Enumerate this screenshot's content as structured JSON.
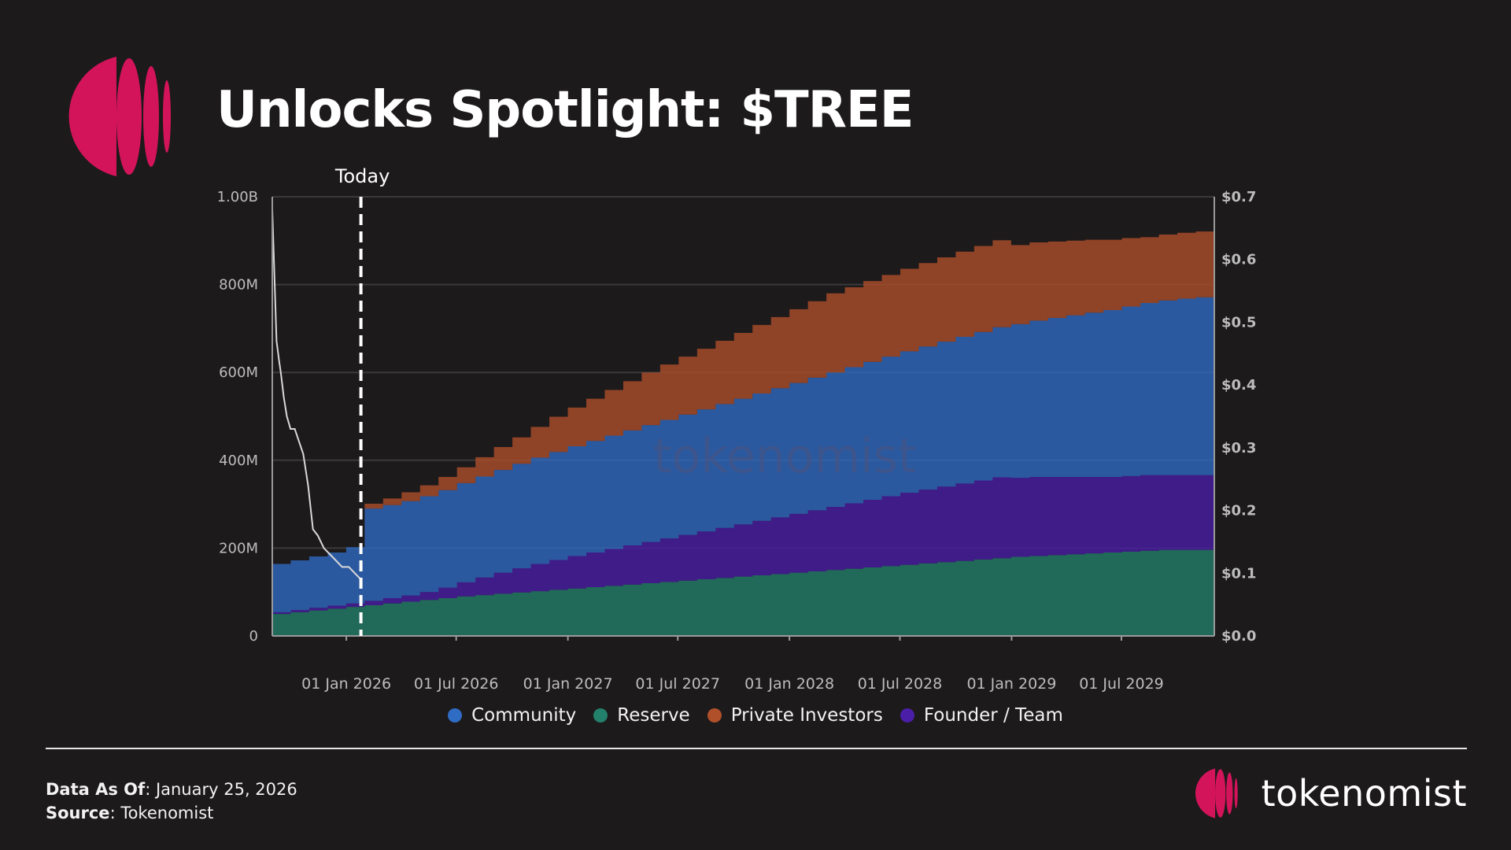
{
  "title": "Unlocks Spotlight: $TREE",
  "colors": {
    "background": "#1d1a1b",
    "brand": "#d4145a",
    "community": "#2f6cc4",
    "reserve": "#23806a",
    "private_investors": "#b0502a",
    "founder_team": "#4a1ea6",
    "price_line": "#d9d9d9"
  },
  "footer": {
    "data_as_of_label": "Data As Of",
    "data_as_of_value": ": January 25, 2026",
    "source_label": "Source",
    "source_value": ": Tokenomist"
  },
  "brand": {
    "name": "tokenomist",
    "watermark": "tokenomist"
  },
  "chart_data": {
    "type": "area",
    "stacked": true,
    "today_label": "Today",
    "today_date": "2026-01-25",
    "x_start": "2025-09-01",
    "x_end": "2029-12-01",
    "x_ticks": [
      "01 Jan 2026",
      "01 Jul 2026",
      "01 Jan 2027",
      "01 Jul 2027",
      "01 Jan 2028",
      "01 Jul 2028",
      "01 Jan 2029",
      "01 Jul 2029"
    ],
    "y_left": {
      "ticks": [
        "0",
        "200M",
        "400M",
        "600M",
        "800M",
        "1.00B"
      ],
      "min": 0,
      "max": 1000000000
    },
    "y_right": {
      "ticks": [
        "$0.0",
        "$0.1",
        "$0.2",
        "$0.3",
        "$0.4",
        "$0.5",
        "$0.6",
        "$0.7"
      ],
      "min": 0,
      "max": 0.7
    },
    "grid": true,
    "legend_position": "bottom",
    "x": [
      "2025-09",
      "2025-10",
      "2025-11",
      "2025-12",
      "2026-01",
      "2026-02",
      "2026-03",
      "2026-04",
      "2026-05",
      "2026-06",
      "2026-07",
      "2026-08",
      "2026-09",
      "2026-10",
      "2026-11",
      "2026-12",
      "2027-01",
      "2027-02",
      "2027-03",
      "2027-04",
      "2027-05",
      "2027-06",
      "2027-07",
      "2027-08",
      "2027-09",
      "2027-10",
      "2027-11",
      "2027-12",
      "2028-01",
      "2028-02",
      "2028-03",
      "2028-04",
      "2028-05",
      "2028-06",
      "2028-07",
      "2028-08",
      "2028-09",
      "2028-10",
      "2028-11",
      "2028-12",
      "2029-01",
      "2029-02",
      "2029-03",
      "2029-04",
      "2029-05",
      "2029-06",
      "2029-07",
      "2029-08",
      "2029-09",
      "2029-10",
      "2029-11"
    ],
    "series": [
      {
        "name": "Reserve",
        "color": "#23806a",
        "values": [
          50,
          54,
          58,
          62,
          66,
          70,
          74,
          78,
          82,
          86,
          90,
          93,
          96,
          99,
          102,
          105,
          108,
          111,
          114,
          117,
          120,
          123,
          126,
          129,
          132,
          135,
          138,
          141,
          144,
          147,
          150,
          153,
          156,
          159,
          162,
          165,
          168,
          171,
          174,
          177,
          180,
          182,
          184,
          186,
          188,
          190,
          192,
          194,
          196,
          196,
          196
        ]
      },
      {
        "name": "Founder / Team",
        "color": "#4a1ea6",
        "values": [
          4,
          5,
          6,
          7,
          8,
          10,
          12,
          14,
          18,
          24,
          32,
          40,
          48,
          55,
          62,
          68,
          74,
          79,
          84,
          89,
          94,
          99,
          104,
          109,
          114,
          119,
          124,
          129,
          134,
          139,
          144,
          149,
          154,
          159,
          164,
          168,
          172,
          176,
          180,
          184,
          180,
          180,
          178,
          176,
          174,
          172,
          172,
          172,
          170,
          170,
          170
        ]
      },
      {
        "name": "Community",
        "color": "#2f6cc4",
        "values": [
          110,
          113,
          117,
          121,
          128,
          210,
          212,
          215,
          218,
          222,
          226,
          230,
          234,
          238,
          242,
          246,
          250,
          254,
          258,
          262,
          266,
          270,
          274,
          278,
          282,
          286,
          290,
          294,
          298,
          302,
          306,
          310,
          314,
          318,
          322,
          326,
          330,
          334,
          338,
          342,
          350,
          356,
          362,
          368,
          374,
          380,
          386,
          392,
          398,
          402,
          405
        ]
      },
      {
        "name": "Private Investors",
        "color": "#b0502a",
        "values": [
          0,
          0,
          0,
          0,
          0,
          11,
          15,
          20,
          25,
          30,
          36,
          44,
          52,
          60,
          70,
          80,
          88,
          96,
          104,
          112,
          120,
          126,
          132,
          138,
          144,
          150,
          156,
          162,
          168,
          174,
          180,
          182,
          184,
          186,
          188,
          190,
          192,
          194,
          196,
          198,
          180,
          178,
          174,
          170,
          166,
          160,
          156,
          150,
          150,
          150,
          150
        ]
      }
    ],
    "price": {
      "name": "Price",
      "x": [
        "2025-09-01",
        "2025-09-05",
        "2025-09-08",
        "2025-09-12",
        "2025-09-15",
        "2025-09-20",
        "2025-09-25",
        "2025-10-01",
        "2025-10-08",
        "2025-10-15",
        "2025-10-22",
        "2025-10-30",
        "2025-11-07",
        "2025-11-15",
        "2025-11-25",
        "2025-12-05",
        "2025-12-15",
        "2025-12-25",
        "2026-01-05",
        "2026-01-15",
        "2026-01-25"
      ],
      "values": [
        0.68,
        0.56,
        0.47,
        0.44,
        0.42,
        0.38,
        0.35,
        0.33,
        0.33,
        0.31,
        0.29,
        0.24,
        0.17,
        0.16,
        0.14,
        0.13,
        0.12,
        0.11,
        0.11,
        0.1,
        0.09
      ]
    }
  }
}
